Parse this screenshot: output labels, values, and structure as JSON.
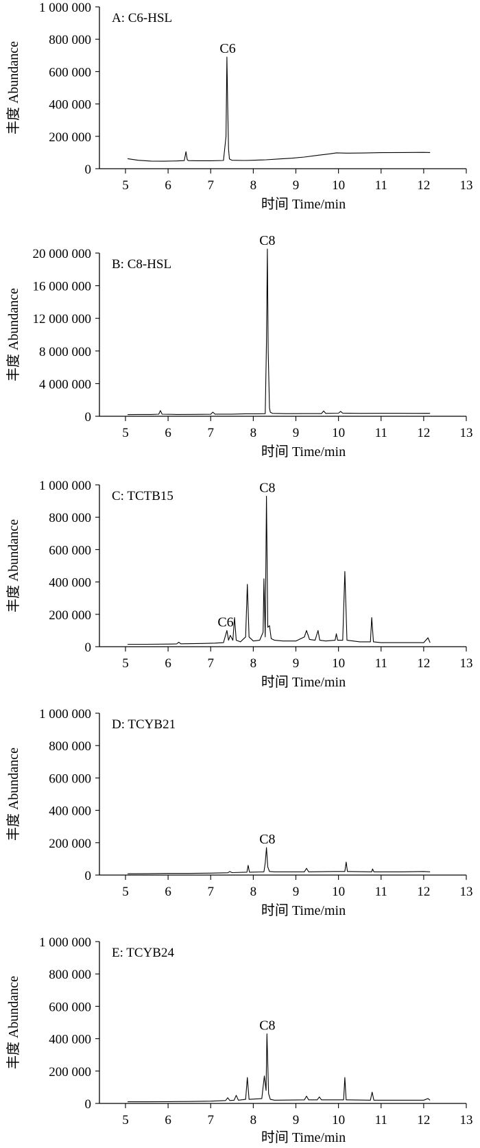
{
  "chart_data": [
    {
      "type": "line",
      "panel": "A: C6-HSL",
      "xlabel": "时间 Time/min",
      "ylabel": "丰度 Abundance",
      "xlim": [
        4.5,
        13
      ],
      "ylim": [
        0,
        1000000
      ],
      "xticks": [
        "5",
        "6",
        "7",
        "8",
        "9",
        "10",
        "11",
        "12",
        "13"
      ],
      "yticks": [
        "0",
        "200 000",
        "400 000",
        "600 000",
        "800 000",
        "1 000 000"
      ],
      "peak_labels": [
        {
          "text": "C6",
          "x": 7.4,
          "y": 690000
        }
      ],
      "series": [
        {
          "x": [
            5.05,
            5.3,
            5.6,
            5.9,
            6.2,
            6.38,
            6.42,
            6.45,
            6.48,
            6.7,
            7.0,
            7.3,
            7.36,
            7.38,
            7.4,
            7.42,
            7.44,
            7.5,
            7.8,
            8.0,
            8.3,
            8.6,
            8.9,
            9.2,
            9.5,
            9.8,
            9.95,
            10.2,
            10.6,
            11.0,
            11.5,
            12.0,
            12.15
          ],
          "y": [
            62000,
            52000,
            47000,
            46000,
            48000,
            50000,
            105000,
            55000,
            50000,
            49000,
            49000,
            51000,
            200000,
            690000,
            380000,
            120000,
            60000,
            52000,
            51000,
            52000,
            55000,
            60000,
            65000,
            72000,
            82000,
            92000,
            98000,
            96000,
            97000,
            99000,
            100000,
            101000,
            100000
          ]
        }
      ]
    },
    {
      "type": "line",
      "panel": "B: C8-HSL",
      "xlabel": "时间 Time/min",
      "ylabel": "丰度 Abundance",
      "xlim": [
        4.5,
        13
      ],
      "ylim": [
        0,
        20000000
      ],
      "xticks": [
        "5",
        "6",
        "7",
        "8",
        "9",
        "10",
        "11",
        "12",
        "13"
      ],
      "yticks": [
        "0",
        "4 000 000",
        "8 000 000",
        "12 000 000",
        "16 000 000",
        "20 000 000"
      ],
      "peak_labels": [
        {
          "text": "C8",
          "x": 8.33,
          "y": 20500000
        }
      ],
      "series": [
        {
          "x": [
            5.05,
            5.3,
            5.6,
            5.78,
            5.82,
            5.86,
            6.2,
            6.6,
            7.0,
            7.05,
            7.1,
            7.5,
            7.8,
            8.1,
            8.28,
            8.31,
            8.33,
            8.35,
            8.38,
            8.4,
            8.45,
            8.8,
            9.2,
            9.6,
            9.65,
            9.7,
            10.0,
            10.05,
            10.1,
            10.5,
            11.0,
            11.4,
            11.8,
            12.1,
            12.15
          ],
          "y": [
            200000,
            220000,
            220000,
            250000,
            700000,
            250000,
            220000,
            230000,
            240000,
            500000,
            260000,
            260000,
            300000,
            300000,
            320000,
            9000000,
            20500000,
            8000000,
            1000000,
            500000,
            350000,
            320000,
            330000,
            330000,
            650000,
            350000,
            380000,
            600000,
            380000,
            350000,
            360000,
            360000,
            350000,
            360000,
            350000
          ]
        }
      ]
    },
    {
      "type": "line",
      "panel": "C: TCTB15",
      "xlabel": "时间 Time/min",
      "ylabel": "丰度 Abundance",
      "xlim": [
        4.5,
        13
      ],
      "ylim": [
        0,
        1000000
      ],
      "xticks": [
        "5",
        "6",
        "7",
        "8",
        "9",
        "10",
        "11",
        "12",
        "13"
      ],
      "yticks": [
        "0",
        "200 000",
        "400 000",
        "600 000",
        "800 000",
        "1 000 000"
      ],
      "peak_labels": [
        {
          "text": "C8",
          "x": 8.33,
          "y": 930000
        },
        {
          "text": "C6",
          "x": 7.35,
          "y": 100000
        }
      ],
      "series": [
        {
          "x": [
            5.05,
            5.5,
            6.0,
            6.2,
            6.25,
            6.3,
            6.8,
            7.1,
            7.3,
            7.38,
            7.42,
            7.46,
            7.52,
            7.56,
            7.6,
            7.7,
            7.82,
            7.86,
            7.9,
            8.0,
            8.15,
            8.23,
            8.25,
            8.28,
            8.31,
            8.34,
            8.38,
            8.42,
            8.5,
            8.7,
            9.0,
            9.2,
            9.25,
            9.32,
            9.45,
            9.52,
            9.56,
            9.7,
            9.92,
            9.95,
            9.98,
            10.1,
            10.15,
            10.2,
            10.5,
            10.75,
            10.78,
            10.82,
            11.0,
            11.5,
            12.0,
            12.1,
            12.15
          ],
          "y": [
            15000,
            15000,
            16000,
            17000,
            28000,
            18000,
            20000,
            22000,
            25000,
            100000,
            40000,
            70000,
            40000,
            180000,
            40000,
            30000,
            60000,
            385000,
            60000,
            35000,
            40000,
            90000,
            420000,
            60000,
            930000,
            120000,
            130000,
            50000,
            40000,
            35000,
            35000,
            60000,
            100000,
            45000,
            40000,
            100000,
            40000,
            35000,
            40000,
            80000,
            40000,
            40000,
            465000,
            40000,
            30000,
            30000,
            180000,
            30000,
            25000,
            25000,
            25000,
            55000,
            25000
          ]
        }
      ]
    },
    {
      "type": "line",
      "panel": "D: TCYB21",
      "xlabel": "时间 Time/min",
      "ylabel": "丰度 Abundance",
      "xlim": [
        4.5,
        13
      ],
      "ylim": [
        0,
        1000000
      ],
      "xticks": [
        "5",
        "6",
        "7",
        "8",
        "9",
        "10",
        "11",
        "12",
        "13"
      ],
      "yticks": [
        "0",
        "200 000",
        "400 000",
        "600 000",
        "800 000",
        "1 000 000"
      ],
      "peak_labels": [
        {
          "text": "C8",
          "x": 8.33,
          "y": 170000
        }
      ],
      "series": [
        {
          "x": [
            5.05,
            5.5,
            6.0,
            6.5,
            7.0,
            7.4,
            7.45,
            7.5,
            7.85,
            7.88,
            7.91,
            8.25,
            8.28,
            8.31,
            8.34,
            8.38,
            8.5,
            9.2,
            9.25,
            9.3,
            9.9,
            10.15,
            10.18,
            10.21,
            10.78,
            10.8,
            10.83,
            11.5,
            12.0,
            12.15
          ],
          "y": [
            8000,
            9000,
            10000,
            10000,
            12000,
            14000,
            22000,
            15000,
            18000,
            60000,
            18000,
            20000,
            75000,
            170000,
            50000,
            22000,
            20000,
            20000,
            42000,
            20000,
            22000,
            22000,
            80000,
            22000,
            20000,
            38000,
            20000,
            20000,
            22000,
            20000
          ]
        }
      ]
    },
    {
      "type": "line",
      "panel": "E: TCYB24",
      "xlabel": "时间 Time/min",
      "ylabel": "丰度 Abundance",
      "xlim": [
        4.5,
        13
      ],
      "ylim": [
        0,
        1000000
      ],
      "xticks": [
        "5",
        "6",
        "7",
        "8",
        "9",
        "10",
        "11",
        "12",
        "13"
      ],
      "yticks": [
        "0",
        "200 000",
        "400 000",
        "600 000",
        "800 000",
        "1 000 000"
      ],
      "peak_labels": [
        {
          "text": "C8",
          "x": 8.33,
          "y": 430000
        }
      ],
      "series": [
        {
          "x": [
            5.05,
            5.5,
            6.0,
            6.5,
            7.0,
            7.35,
            7.4,
            7.45,
            7.55,
            7.6,
            7.65,
            7.82,
            7.86,
            7.9,
            8.2,
            8.26,
            8.3,
            8.32,
            8.36,
            8.4,
            8.5,
            9.2,
            9.25,
            9.3,
            9.5,
            9.55,
            9.6,
            10.12,
            10.15,
            10.18,
            10.75,
            10.79,
            10.83,
            11.5,
            12.0,
            12.1,
            12.15
          ],
          "y": [
            10000,
            10000,
            11000,
            12000,
            14000,
            18000,
            35000,
            18000,
            20000,
            50000,
            20000,
            25000,
            160000,
            25000,
            30000,
            170000,
            80000,
            430000,
            60000,
            25000,
            20000,
            22000,
            45000,
            22000,
            22000,
            40000,
            22000,
            22000,
            160000,
            22000,
            20000,
            70000,
            20000,
            20000,
            20000,
            30000,
            20000
          ]
        }
      ]
    }
  ]
}
